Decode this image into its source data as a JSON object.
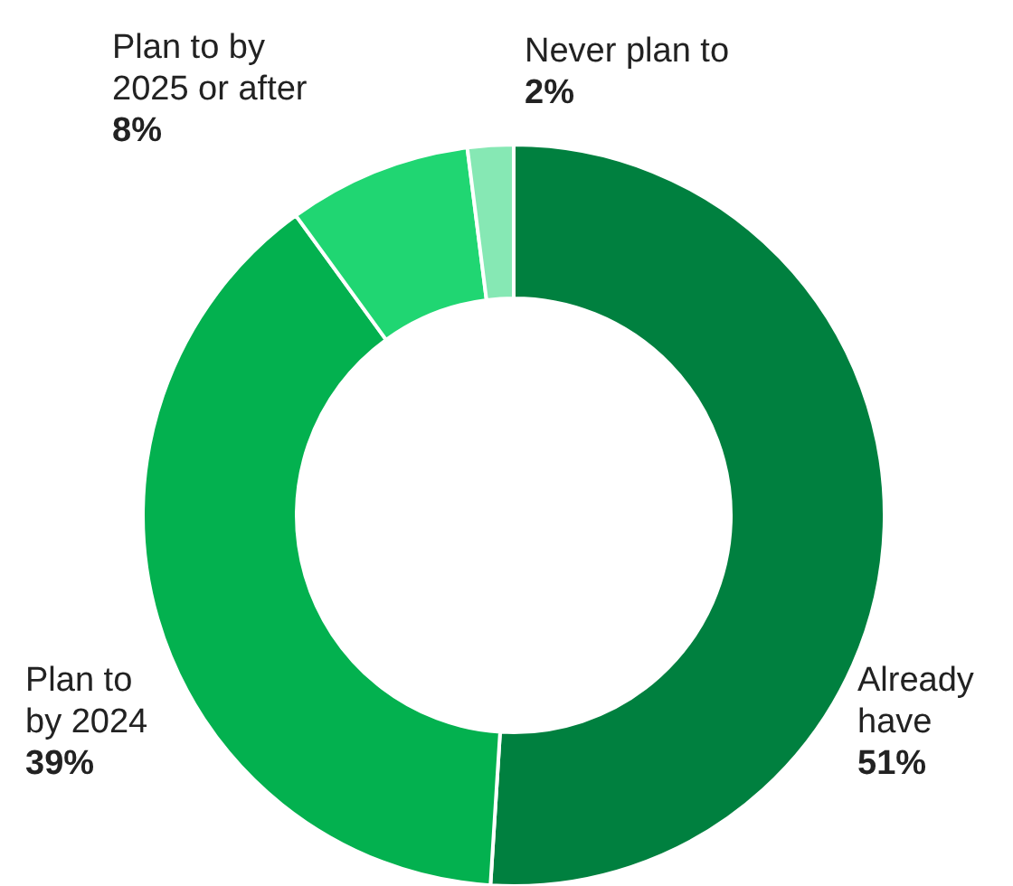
{
  "chart_data": {
    "type": "donut",
    "categories": [
      "Already have",
      "Plan to by 2024",
      "Plan to by 2025 or after",
      "Never plan to"
    ],
    "values": [
      51,
      39,
      8,
      2
    ],
    "value_labels": [
      "51%",
      "39%",
      "8%",
      "2%"
    ],
    "colors": [
      "#00803f",
      "#03b14f",
      "#20d672",
      "#86e8b4"
    ]
  }
}
